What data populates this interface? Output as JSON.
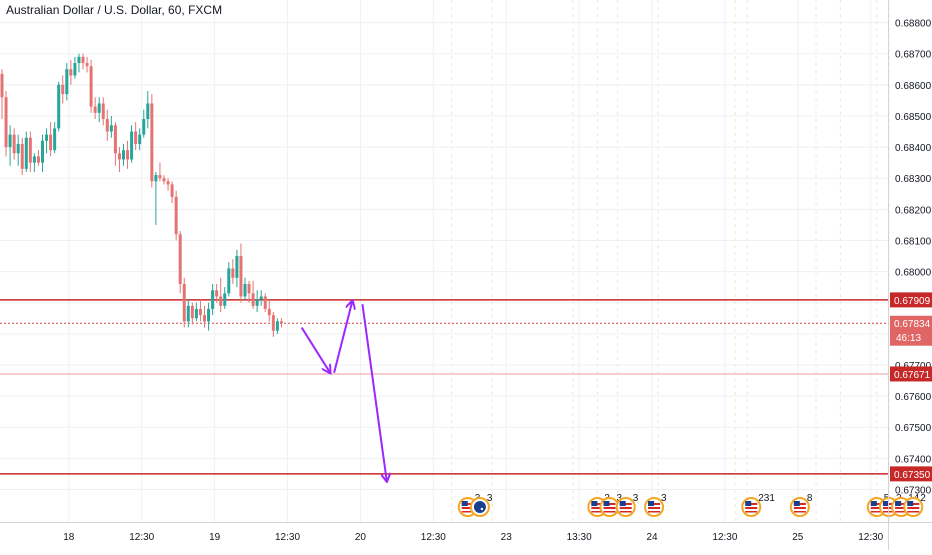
{
  "chart_data": {
    "type": "candlestick",
    "title": "Australian Dollar / U.S. Dollar, 60, FXCM",
    "ylim": [
      0.6725,
      0.6885
    ],
    "y_ticks": [
      "0.68800",
      "0.68700",
      "0.68600",
      "0.68500",
      "0.68400",
      "0.68300",
      "0.68200",
      "0.68100",
      "0.68000",
      "0.67900",
      "0.67800",
      "0.67700",
      "0.67600",
      "0.67500",
      "0.67400",
      "0.67300"
    ],
    "x_ticks": [
      {
        "label": "12:30",
        "i": -4.5
      },
      {
        "label": "18",
        "i": 16.5
      },
      {
        "label": "12:30",
        "i": 34.5
      },
      {
        "label": "19",
        "i": 52.5
      },
      {
        "label": "12:30",
        "i": 70.5
      },
      {
        "label": "20",
        "i": 88.5
      },
      {
        "label": "12:30",
        "i": 106.5
      },
      {
        "label": "23",
        "i": 124.5
      },
      {
        "label": "13:30",
        "i": 142.5
      },
      {
        "label": "24",
        "i": 160.5
      },
      {
        "label": "12:30",
        "i": 178.5
      },
      {
        "label": "25",
        "i": 196.5
      },
      {
        "label": "12:30",
        "i": 214.5
      }
    ],
    "candles": [
      [
        0.68635,
        0.6865,
        0.6849,
        0.6856
      ],
      [
        0.6856,
        0.6858,
        0.6837,
        0.684
      ],
      [
        0.684,
        0.6847,
        0.6834,
        0.6844
      ],
      [
        0.6844,
        0.6846,
        0.6836,
        0.6838
      ],
      [
        0.6838,
        0.6844,
        0.6834,
        0.6841
      ],
      [
        0.6841,
        0.6843,
        0.6831,
        0.6833
      ],
      [
        0.6833,
        0.6845,
        0.6832,
        0.6843
      ],
      [
        0.6843,
        0.6845,
        0.6832,
        0.6835
      ],
      [
        0.6835,
        0.6838,
        0.6832,
        0.6837
      ],
      [
        0.6837,
        0.6839,
        0.6834,
        0.6835
      ],
      [
        0.6835,
        0.6844,
        0.6832,
        0.6842
      ],
      [
        0.6842,
        0.6846,
        0.6838,
        0.6844
      ],
      [
        0.6844,
        0.6848,
        0.6837,
        0.6839
      ],
      [
        0.6839,
        0.6848,
        0.6838,
        0.6846
      ],
      [
        0.6846,
        0.6861,
        0.6845,
        0.686
      ],
      [
        0.686,
        0.6863,
        0.6854,
        0.6857
      ],
      [
        0.6857,
        0.6867,
        0.6855,
        0.6865
      ],
      [
        0.6865,
        0.6868,
        0.686,
        0.6863
      ],
      [
        0.6863,
        0.6869,
        0.6862,
        0.6867
      ],
      [
        0.6867,
        0.687,
        0.6864,
        0.6869
      ],
      [
        0.6869,
        0.687,
        0.6865,
        0.6867
      ],
      [
        0.6867,
        0.6869,
        0.6864,
        0.6866
      ],
      [
        0.6866,
        0.6868,
        0.6851,
        0.6853
      ],
      [
        0.6853,
        0.6856,
        0.6849,
        0.6851
      ],
      [
        0.6851,
        0.6856,
        0.6848,
        0.6854
      ],
      [
        0.6854,
        0.6856,
        0.6847,
        0.6849
      ],
      [
        0.6849,
        0.6852,
        0.6842,
        0.6845
      ],
      [
        0.6845,
        0.685,
        0.6843,
        0.6847
      ],
      [
        0.6847,
        0.6848,
        0.6834,
        0.6838
      ],
      [
        0.6838,
        0.684,
        0.6832,
        0.6836
      ],
      [
        0.6836,
        0.6841,
        0.6834,
        0.6839
      ],
      [
        0.6839,
        0.6842,
        0.6833,
        0.6836
      ],
      [
        0.6836,
        0.6847,
        0.6835,
        0.6845
      ],
      [
        0.6845,
        0.6848,
        0.6839,
        0.6841
      ],
      [
        0.6841,
        0.6846,
        0.6839,
        0.6844
      ],
      [
        0.6844,
        0.6852,
        0.6843,
        0.6849
      ],
      [
        0.6849,
        0.6858,
        0.6846,
        0.6854
      ],
      [
        0.6854,
        0.6857,
        0.6827,
        0.6829
      ],
      [
        0.6829,
        0.6832,
        0.6815,
        0.6831
      ],
      [
        0.6831,
        0.6835,
        0.6829,
        0.683
      ],
      [
        0.683,
        0.6831,
        0.6828,
        0.6829
      ],
      [
        0.6829,
        0.683,
        0.6826,
        0.6828
      ],
      [
        0.6828,
        0.6829,
        0.6822,
        0.6824
      ],
      [
        0.6824,
        0.6826,
        0.681,
        0.6812
      ],
      [
        0.6812,
        0.6813,
        0.6793,
        0.6796
      ],
      [
        0.6796,
        0.6798,
        0.6782,
        0.6784
      ],
      [
        0.6784,
        0.6791,
        0.6782,
        0.6789
      ],
      [
        0.6789,
        0.679,
        0.6783,
        0.6785
      ],
      [
        0.6785,
        0.679,
        0.6784,
        0.6788
      ],
      [
        0.6788,
        0.6791,
        0.6784,
        0.6786
      ],
      [
        0.6786,
        0.6789,
        0.6782,
        0.6784
      ],
      [
        0.6784,
        0.679,
        0.6781,
        0.6788
      ],
      [
        0.6788,
        0.6796,
        0.6786,
        0.6794
      ],
      [
        0.6794,
        0.6796,
        0.679,
        0.6792
      ],
      [
        0.6792,
        0.6798,
        0.6787,
        0.6789
      ],
      [
        0.6789,
        0.6795,
        0.6788,
        0.6793
      ],
      [
        0.6793,
        0.6803,
        0.6792,
        0.6801
      ],
      [
        0.6801,
        0.6804,
        0.6796,
        0.6798
      ],
      [
        0.6798,
        0.6807,
        0.6795,
        0.6805
      ],
      [
        0.6805,
        0.6809,
        0.679,
        0.6792
      ],
      [
        0.6792,
        0.6798,
        0.6791,
        0.6796
      ],
      [
        0.6796,
        0.6797,
        0.679,
        0.6793
      ],
      [
        0.6793,
        0.6797,
        0.6788,
        0.6789
      ],
      [
        0.6789,
        0.6794,
        0.6787,
        0.6791
      ],
      [
        0.6791,
        0.6794,
        0.6789,
        0.6792
      ],
      [
        0.6792,
        0.6793,
        0.6787,
        0.6788
      ],
      [
        0.6788,
        0.6791,
        0.6784,
        0.6786
      ],
      [
        0.6786,
        0.6787,
        0.6779,
        0.6781
      ],
      [
        0.6781,
        0.6785,
        0.678,
        0.6784
      ],
      [
        0.6784,
        0.6785,
        0.6782,
        0.67834
      ]
    ],
    "levels": [
      {
        "value": 0.67909,
        "label": "0.67909",
        "style": "solid",
        "color": "#c62828",
        "width": 1.4
      },
      {
        "value": 0.67834,
        "label": "0.67834",
        "style": "dotted",
        "color": "#d84141",
        "width": 1,
        "countdown": "46:13"
      },
      {
        "value": 0.67671,
        "label": "0.67671",
        "style": "solid",
        "color": "#ef9a9a",
        "width": 1
      },
      {
        "value": 0.6735,
        "label": "0.67350",
        "style": "solid",
        "color": "#c62828",
        "width": 1.4
      }
    ],
    "projection_path": [
      [
        [
          74,
          0.6782
        ],
        [
          81,
          0.67675
        ]
      ],
      [
        [
          82,
          0.67675
        ],
        [
          86.5,
          0.67905
        ]
      ],
      [
        [
          89,
          0.67895
        ],
        [
          95,
          0.67327
        ]
      ]
    ],
    "events": [
      {
        "i": 115,
        "flag": "us",
        "count": "3"
      },
      {
        "i": 118,
        "flag": "au",
        "count": "3"
      },
      {
        "i": 147,
        "flag": "us",
        "count": "3"
      },
      {
        "i": 150,
        "flag": "us",
        "count": "3"
      },
      {
        "i": 154,
        "flag": "us",
        "count": "3"
      },
      {
        "i": 161,
        "flag": "us",
        "count": "3"
      },
      {
        "i": 185,
        "flag": "us",
        "count": "231"
      },
      {
        "i": 197,
        "flag": "us",
        "count": "8"
      },
      {
        "i": 216,
        "flag": "us",
        "count": "5"
      },
      {
        "i": 219,
        "flag": "us",
        "count": "2"
      },
      {
        "i": 222,
        "flag": "us",
        "count": "14"
      },
      {
        "i": 225,
        "flag": "us",
        "count": "2"
      }
    ],
    "colors": {
      "up": "#26a69a",
      "down": "#e57373",
      "arrow": "#9c27ff",
      "grid": "#eef0f3",
      "axis_text": "#131722",
      "price_box": "#c62828",
      "price_box_text": "#ffffff"
    }
  }
}
